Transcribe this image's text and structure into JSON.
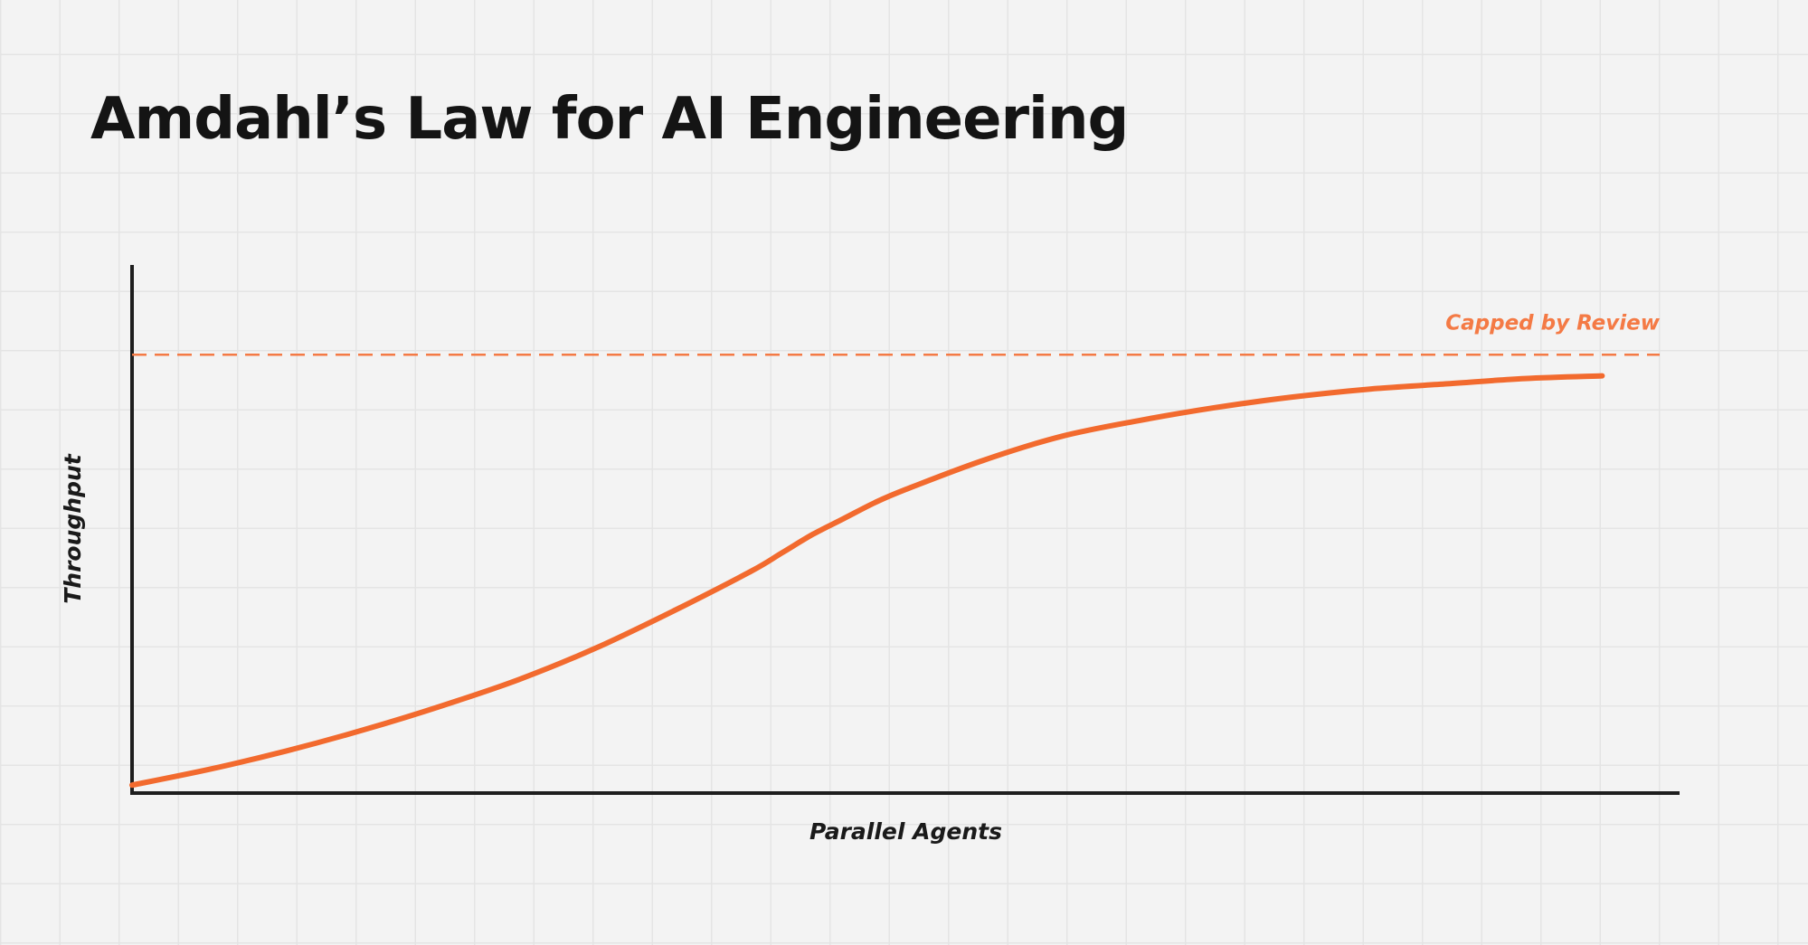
{
  "chart_data": {
    "type": "line",
    "title": "Amdahl’s Law for AI Engineering",
    "xlabel": "Parallel Agents",
    "ylabel": "Throughput",
    "xlim": [
      0,
      100
    ],
    "ylim": [
      0,
      100
    ],
    "grid": true,
    "series": [
      {
        "x": [
          0,
          5,
          10,
          15,
          20,
          25,
          30,
          35,
          40,
          42,
          44,
          46,
          48,
          50,
          55,
          60,
          65,
          70,
          75,
          80,
          85,
          90,
          95
        ],
        "values": [
          1.5,
          4.5,
          8,
          12,
          16.5,
          21.5,
          27.5,
          34.5,
          42,
          45.5,
          49,
          52,
          55,
          57.5,
          63,
          67.5,
          70.5,
          73,
          75,
          76.5,
          77.5,
          78.5,
          79
        ]
      }
    ],
    "reference_lines": [
      {
        "y": 83,
        "label": "Capped by Review",
        "style": "dashed"
      }
    ],
    "colors": {
      "curve": "#f26a2e",
      "cap_line": "#f47a45",
      "axis": "#1e1e1e"
    }
  }
}
